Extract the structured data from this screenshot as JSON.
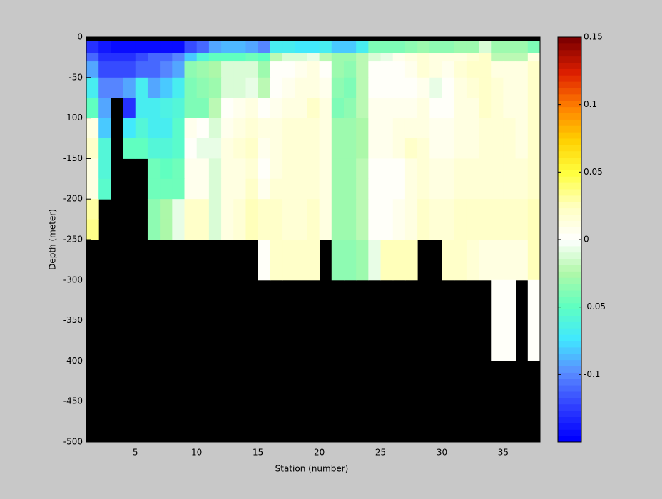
{
  "chart_data": {
    "type": "heatmap",
    "xlabel": "Station (number)",
    "ylabel": "Depth (meter)",
    "xlim": [
      1,
      38
    ],
    "ylim": [
      -500,
      0
    ],
    "xticks": [
      5,
      10,
      15,
      20,
      25,
      30,
      35
    ],
    "yticks": [
      0,
      -50,
      -100,
      -150,
      -200,
      -250,
      -300,
      -350,
      -400,
      -450,
      -500
    ],
    "x_edges": [
      1,
      2,
      3,
      4,
      5,
      6,
      7,
      8,
      9,
      10,
      11,
      12,
      13,
      14,
      15,
      16,
      17,
      18,
      19,
      20,
      21,
      22,
      23,
      24,
      25,
      26,
      27,
      28,
      29,
      30,
      31,
      32,
      33,
      34,
      35,
      36,
      37,
      38
    ],
    "y_edges": [
      0,
      -5,
      -20,
      -30,
      -50,
      -75,
      -100,
      -125,
      -150,
      -175,
      -200,
      -225,
      -250,
      -300,
      -400,
      -500
    ],
    "nan_color": "#000000",
    "clim": [
      -0.15,
      0.15
    ],
    "cticks": [
      0.15,
      0.1,
      0.05,
      0,
      -0.05,
      -0.1
    ],
    "colormap": [
      "#0000ff",
      "#3040ff",
      "#5a8cff",
      "#40e8ff",
      "#60ffc0",
      "#b0f8a8",
      "#ffffff",
      "#ffffc0",
      "#ffff40",
      "#ffd000",
      "#ff8000",
      "#e02000",
      "#800000"
    ],
    "colormap_levels": 64,
    "values": [
      [
        null,
        null,
        null,
        null,
        null,
        null,
        null,
        null,
        null,
        null,
        null,
        null,
        null,
        null,
        null,
        null,
        null,
        null,
        null,
        null,
        null,
        null,
        null,
        null,
        null,
        null,
        null,
        null,
        null,
        null,
        null,
        null,
        null,
        null,
        null,
        null,
        null
      ],
      [
        -0.13,
        -0.14,
        -0.145,
        -0.145,
        -0.145,
        -0.145,
        -0.145,
        -0.145,
        -0.12,
        -0.11,
        -0.09,
        -0.085,
        -0.085,
        -0.09,
        -0.1,
        -0.07,
        -0.07,
        -0.075,
        -0.075,
        -0.07,
        -0.08,
        -0.08,
        -0.07,
        -0.04,
        -0.04,
        -0.04,
        -0.035,
        -0.03,
        -0.035,
        -0.035,
        -0.03,
        -0.03,
        -0.01,
        -0.03,
        -0.03,
        -0.03,
        -0.04
      ],
      [
        -0.11,
        -0.13,
        -0.13,
        -0.13,
        -0.12,
        -0.11,
        -0.11,
        -0.1,
        -0.08,
        -0.06,
        -0.05,
        -0.05,
        -0.05,
        -0.045,
        -0.05,
        -0.02,
        -0.01,
        -0.01,
        -0.005,
        -0.02,
        -0.03,
        -0.03,
        -0.02,
        -0.01,
        -0.005,
        0.005,
        0.01,
        0.015,
        0.01,
        0.01,
        0.01,
        0.015,
        0.02,
        -0.02,
        -0.02,
        -0.02,
        0.01
      ],
      [
        -0.09,
        -0.12,
        -0.12,
        -0.12,
        -0.11,
        -0.11,
        -0.1,
        -0.09,
        -0.035,
        -0.03,
        -0.025,
        -0.01,
        -0.01,
        -0.01,
        -0.03,
        0,
        0,
        0.005,
        0.01,
        0,
        -0.03,
        -0.035,
        -0.02,
        0,
        0,
        0,
        0.005,
        0.015,
        0.01,
        0.005,
        0.015,
        0.02,
        0.02,
        0.01,
        0.01,
        0.01,
        0.02
      ],
      [
        -0.07,
        -0.1,
        -0.1,
        -0.09,
        -0.07,
        -0.09,
        -0.08,
        -0.07,
        -0.04,
        -0.035,
        -0.03,
        -0.01,
        -0.01,
        -0.005,
        -0.02,
        0,
        0.005,
        0.01,
        0.01,
        0.005,
        -0.035,
        -0.04,
        -0.02,
        0,
        0.002,
        0.002,
        0.002,
        0.005,
        -0.005,
        0,
        0.01,
        0.015,
        0.02,
        0.015,
        0.01,
        0.01,
        0.02
      ],
      [
        -0.05,
        -0.09,
        null,
        -0.13,
        -0.07,
        -0.07,
        -0.065,
        -0.06,
        -0.04,
        -0.04,
        -0.02,
        0,
        0.005,
        0.01,
        0,
        0.005,
        0.01,
        0.01,
        0.02,
        0.01,
        -0.04,
        -0.035,
        -0.02,
        0.005,
        0.005,
        0.005,
        0.005,
        0.01,
        0,
        0,
        0.01,
        0.01,
        0.02,
        0.015,
        0.01,
        0.01,
        0.02
      ],
      [
        0.01,
        -0.08,
        null,
        -0.075,
        -0.06,
        -0.07,
        -0.07,
        -0.055,
        0.005,
        0,
        -0.01,
        0.005,
        0.01,
        0.015,
        0.01,
        0.01,
        0.015,
        0.015,
        0.015,
        0.01,
        -0.03,
        -0.03,
        -0.025,
        0.005,
        0.005,
        0.01,
        0.01,
        0.01,
        0.005,
        0.005,
        0.01,
        0.01,
        0.015,
        0.015,
        0.015,
        0.01,
        0.02
      ],
      [
        0.02,
        -0.06,
        null,
        -0.05,
        -0.05,
        -0.06,
        -0.06,
        -0.055,
        0,
        -0.005,
        -0.005,
        0.01,
        0.015,
        0.02,
        0.005,
        0.01,
        0.015,
        0.015,
        0.015,
        0.01,
        -0.03,
        -0.03,
        -0.025,
        0.005,
        0.005,
        0.01,
        0.02,
        0.015,
        0.005,
        0.005,
        0.01,
        0.01,
        0.015,
        0.015,
        0.015,
        0.01,
        0.02
      ],
      [
        0.01,
        -0.06,
        null,
        null,
        null,
        -0.045,
        -0.05,
        -0.045,
        0.005,
        0.005,
        -0.01,
        0.01,
        0.01,
        0.015,
        0,
        0.01,
        0.015,
        0.015,
        0.015,
        0.01,
        -0.03,
        -0.03,
        -0.02,
        0.002,
        0.002,
        0.002,
        0.01,
        0.015,
        0.01,
        0.01,
        0.015,
        0.015,
        0.015,
        0.015,
        0.015,
        0.015,
        0.02
      ],
      [
        0.01,
        -0.055,
        null,
        null,
        null,
        -0.045,
        -0.045,
        -0.045,
        0.005,
        0.005,
        -0.01,
        0.01,
        0.01,
        0.02,
        0.005,
        0.015,
        0.015,
        0.015,
        0.015,
        0.01,
        -0.03,
        -0.03,
        -0.02,
        0.002,
        0.002,
        0.002,
        0.01,
        0.015,
        0.01,
        0.01,
        0.015,
        0.015,
        0.015,
        0.015,
        0.015,
        0.015,
        0.02
      ],
      [
        0.03,
        null,
        null,
        null,
        null,
        -0.035,
        -0.025,
        -0.005,
        0.02,
        0.02,
        -0.01,
        0.01,
        0.015,
        0.025,
        0.02,
        0.02,
        0.015,
        0.015,
        0.02,
        0.01,
        -0.03,
        -0.03,
        -0.02,
        0.002,
        0.002,
        0.005,
        0.01,
        0.02,
        0.015,
        0.015,
        0.02,
        0.02,
        0.02,
        0.02,
        0.02,
        0.02,
        0.025
      ],
      [
        0.035,
        null,
        null,
        null,
        null,
        -0.035,
        -0.025,
        -0.005,
        0.02,
        0.02,
        -0.01,
        0.01,
        0.015,
        0.025,
        0.02,
        0.02,
        0.015,
        0.015,
        0.02,
        0.01,
        -0.03,
        -0.03,
        -0.02,
        0.002,
        0.002,
        0.005,
        0.01,
        0.02,
        0.015,
        0.015,
        0.02,
        0.02,
        0.02,
        0.02,
        0.02,
        0.02,
        0.025
      ],
      [
        null,
        null,
        null,
        null,
        null,
        null,
        null,
        null,
        null,
        null,
        null,
        null,
        null,
        null,
        0.002,
        0.02,
        0.02,
        0.02,
        0.02,
        null,
        -0.035,
        -0.035,
        -0.03,
        -0.005,
        0.025,
        0.025,
        0.025,
        null,
        null,
        0.02,
        0.02,
        0.015,
        0.01,
        0.01,
        0.01,
        0.01,
        0.025
      ],
      [
        null,
        null,
        null,
        null,
        null,
        null,
        null,
        null,
        null,
        null,
        null,
        null,
        null,
        null,
        null,
        null,
        null,
        null,
        null,
        null,
        null,
        null,
        null,
        null,
        null,
        null,
        null,
        null,
        null,
        null,
        null,
        null,
        null,
        0.003,
        0.003,
        null,
        0.003
      ],
      [
        null,
        null,
        null,
        null,
        null,
        null,
        null,
        null,
        null,
        null,
        null,
        null,
        null,
        null,
        null,
        null,
        null,
        null,
        null,
        null,
        null,
        null,
        null,
        null,
        null,
        null,
        null,
        null,
        null,
        null,
        null,
        null,
        null,
        null,
        null,
        null,
        null
      ]
    ]
  }
}
